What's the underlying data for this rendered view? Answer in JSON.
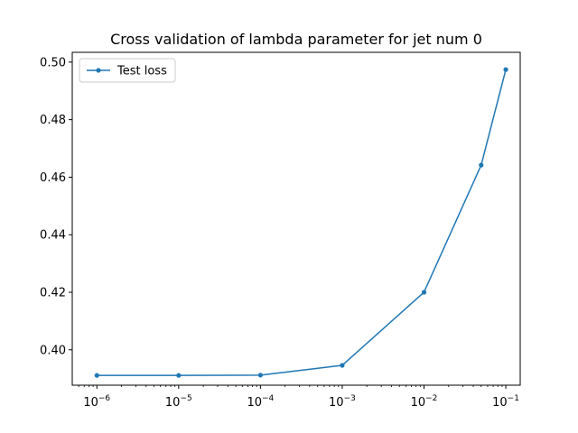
{
  "chart_data": {
    "type": "line",
    "title": "Cross validation of lambda parameter for jet num 0",
    "xlabel": "",
    "ylabel": "",
    "xscale": "log",
    "xlim": [
      5e-07,
      0.15
    ],
    "ylim": [
      0.3877,
      0.5034
    ],
    "grid": false,
    "legend_position": "upper-left",
    "x_ticks": [
      {
        "value": 1e-06,
        "base": "10",
        "exp": "−6"
      },
      {
        "value": 1e-05,
        "base": "10",
        "exp": "−5"
      },
      {
        "value": 0.0001,
        "base": "10",
        "exp": "−4"
      },
      {
        "value": 0.001,
        "base": "10",
        "exp": "−3"
      },
      {
        "value": 0.01,
        "base": "10",
        "exp": "−2"
      },
      {
        "value": 0.1,
        "base": "10",
        "exp": "−1"
      }
    ],
    "y_ticks": [
      {
        "value": 0.4,
        "label": "0.40"
      },
      {
        "value": 0.42,
        "label": "0.42"
      },
      {
        "value": 0.44,
        "label": "0.44"
      },
      {
        "value": 0.46,
        "label": "0.46"
      },
      {
        "value": 0.48,
        "label": "0.48"
      },
      {
        "value": 0.5,
        "label": "0.50"
      }
    ],
    "series": [
      {
        "name": "Test loss",
        "color": "#1f77b4",
        "x": [
          1e-06,
          1e-05,
          0.0001,
          0.001,
          0.01,
          0.05,
          0.1
        ],
        "y": [
          0.3911,
          0.3911,
          0.3912,
          0.3946,
          0.42,
          0.4642,
          0.4974
        ]
      }
    ]
  }
}
